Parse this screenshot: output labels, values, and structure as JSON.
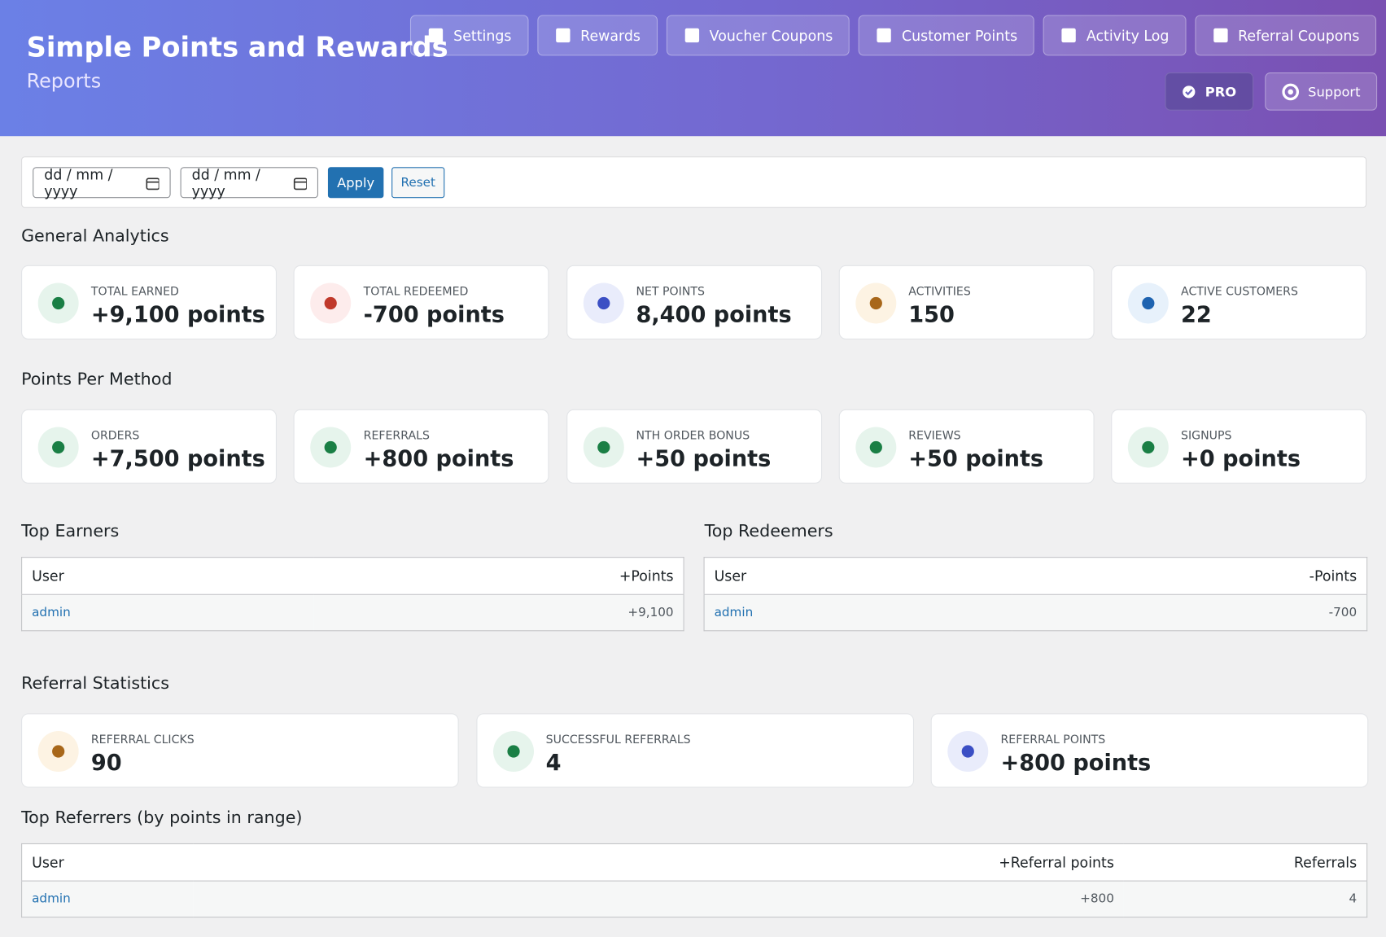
{
  "header": {
    "title": "Simple Points and Rewards",
    "subtitle": "Reports",
    "nav": [
      "Settings",
      "Rewards",
      "Voucher Coupons",
      "Customer Points",
      "Activity Log",
      "Referral Coupons"
    ],
    "pro": "PRO",
    "support": "Support"
  },
  "filter": {
    "date_from": "dd / mm / yyyy",
    "date_to": "dd / mm / yyyy",
    "apply": "Apply",
    "reset": "Reset"
  },
  "general": {
    "heading": "General Analytics",
    "cards": [
      {
        "label": "TOTAL EARNED",
        "value": "+9,100 points"
      },
      {
        "label": "TOTAL REDEEMED",
        "value": "-700 points"
      },
      {
        "label": "NET POINTS",
        "value": "8,400 points"
      },
      {
        "label": "ACTIVITIES",
        "value": "150"
      },
      {
        "label": "ACTIVE CUSTOMERS",
        "value": "22"
      }
    ]
  },
  "methods": {
    "heading": "Points Per Method",
    "cards": [
      {
        "label": "ORDERS",
        "value": "+7,500 points"
      },
      {
        "label": "REFERRALS",
        "value": "+800 points"
      },
      {
        "label": "NTH ORDER BONUS",
        "value": "+50 points"
      },
      {
        "label": "REVIEWS",
        "value": "+50 points"
      },
      {
        "label": "SIGNUPS",
        "value": "+0 points"
      }
    ]
  },
  "top_earners": {
    "heading": "Top Earners",
    "columns": [
      "User",
      "+Points"
    ],
    "rows": [
      [
        "admin",
        "+9,100"
      ]
    ]
  },
  "top_redeemers": {
    "heading": "Top Redeemers",
    "columns": [
      "User",
      "-Points"
    ],
    "rows": [
      [
        "admin",
        "-700"
      ]
    ]
  },
  "referral": {
    "heading": "Referral Statistics",
    "cards": [
      {
        "label": "REFERRAL CLICKS",
        "value": "90"
      },
      {
        "label": "SUCCESSFUL REFERRALS",
        "value": "4"
      },
      {
        "label": "REFERRAL POINTS",
        "value": "+800 points"
      }
    ]
  },
  "top_referrers": {
    "heading": "Top Referrers (by points in range)",
    "columns": [
      "User",
      "+Referral points",
      "Referrals"
    ],
    "rows": [
      [
        "admin",
        "+800",
        "4"
      ]
    ]
  }
}
